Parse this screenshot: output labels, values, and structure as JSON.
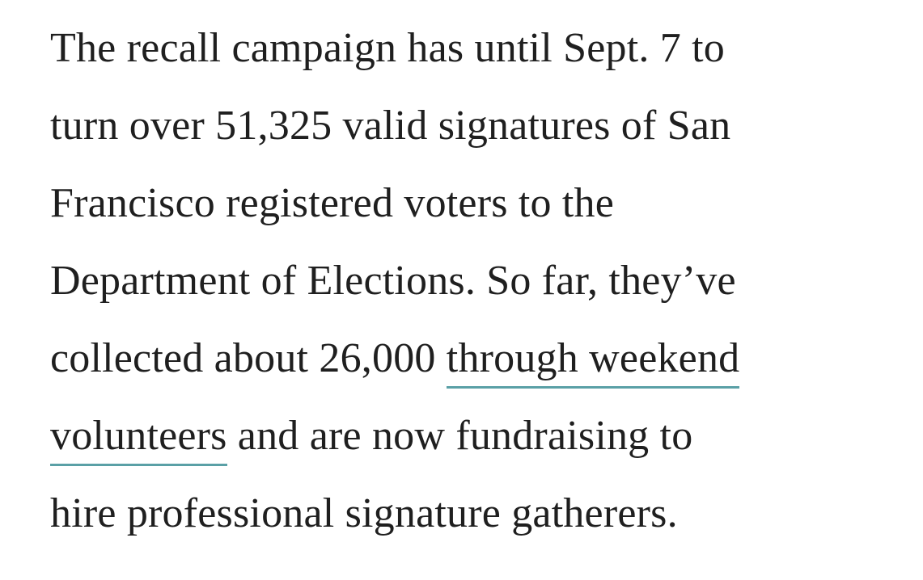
{
  "paragraph": {
    "line1": "The recall campaign has until Sept. 7 to",
    "line2": "turn over 51,325 valid signatures of San",
    "line3": "Francisco registered voters to the",
    "line4": "Department of Elections. So far, they’ve",
    "line5_text": "collected about 26,000 ",
    "link_part1": "through weekend",
    "link_part2": "volunteers",
    "line6_text": " and are now fundraising to",
    "line7": "hire professional signature gatherers."
  },
  "colors": {
    "text": "#1f1f1f",
    "link_underline": "#5aa0a6",
    "background": "#ffffff"
  }
}
